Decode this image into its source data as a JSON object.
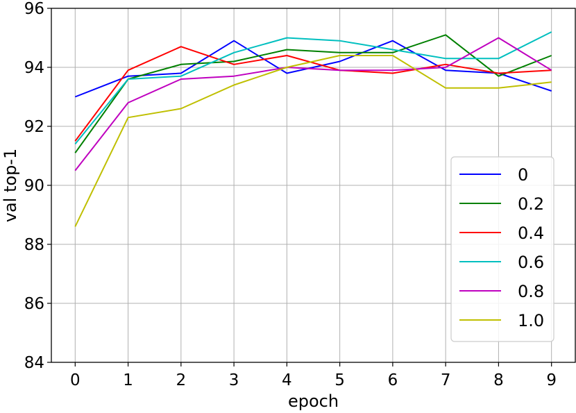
{
  "chart_data": {
    "type": "line",
    "xlabel": "epoch",
    "ylabel": "val top-1",
    "x": [
      0,
      1,
      2,
      3,
      4,
      5,
      6,
      7,
      8,
      9
    ],
    "xlim": [
      -0.45,
      9.45
    ],
    "ylim": [
      84,
      96
    ],
    "xticks": [
      0,
      1,
      2,
      3,
      4,
      5,
      6,
      7,
      8,
      9
    ],
    "yticks": [
      84,
      86,
      88,
      90,
      92,
      94,
      96
    ],
    "grid": true,
    "legend_position": "center-right",
    "series": [
      {
        "name": "0",
        "color": "#0000ff",
        "values": [
          93.0,
          93.7,
          93.8,
          94.9,
          93.8,
          94.2,
          94.9,
          93.9,
          93.8,
          93.2
        ]
      },
      {
        "name": "0.2",
        "color": "#008000",
        "values": [
          91.1,
          93.6,
          94.1,
          94.2,
          94.6,
          94.5,
          94.5,
          95.1,
          93.7,
          94.4
        ]
      },
      {
        "name": "0.4",
        "color": "#ff0000",
        "values": [
          91.5,
          93.9,
          94.7,
          94.1,
          94.4,
          93.9,
          93.8,
          94.1,
          93.8,
          93.9
        ]
      },
      {
        "name": "0.6",
        "color": "#00bfbf",
        "values": [
          91.4,
          93.6,
          93.7,
          94.5,
          95.0,
          94.9,
          94.6,
          94.3,
          94.3,
          95.2
        ]
      },
      {
        "name": "0.8",
        "color": "#bf00bf",
        "values": [
          90.5,
          92.8,
          93.6,
          93.7,
          94.0,
          93.9,
          93.9,
          94.0,
          95.0,
          93.9
        ]
      },
      {
        "name": "1.0",
        "color": "#bfbf00",
        "values": [
          88.6,
          92.3,
          92.6,
          93.4,
          94.0,
          94.4,
          94.4,
          93.3,
          93.3,
          93.5
        ]
      }
    ]
  }
}
